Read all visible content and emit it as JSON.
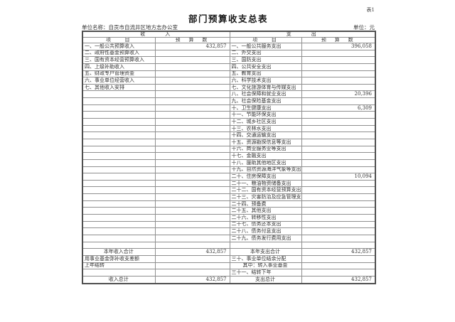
{
  "meta": {
    "table_tag": "表1",
    "title": "部门预算收支总表",
    "unit_name": "单位名称：自贡市自流井区地方志办公室",
    "unit": "单位：元"
  },
  "colors": {
    "background": "#ffffff",
    "border_inner": "#8f8f8f",
    "border_outer": "#4f4f4f",
    "text": "#2e2e2e"
  },
  "table": {
    "income_group_header": "收入",
    "expense_group_header": "支出",
    "item_header": "项目",
    "budget_header": "预算数",
    "rows": [
      {
        "li": "一、一般公共预算收入",
        "lv": "432,857",
        "ri": "一、一般公共服务支出",
        "rv": "396,058"
      },
      {
        "li": "二、政府性基金预算收入",
        "lv": "",
        "ri": "二、外交支出",
        "rv": ""
      },
      {
        "li": "三、国有资本经营预算收入",
        "lv": "",
        "ri": "三、国防支出",
        "rv": ""
      },
      {
        "li": "四、上级补助收入",
        "lv": "",
        "ri": "四、公共安全支出",
        "rv": ""
      },
      {
        "li": "五、财政专户管理资金",
        "lv": "",
        "ri": "五、教育支出",
        "rv": ""
      },
      {
        "li": "六、事业单位经营收入",
        "lv": "",
        "ri": "六、科学技术支出",
        "rv": ""
      },
      {
        "li": "七、其他收入安排",
        "lv": "",
        "ri": "七、文化旅游体育与传媒支出",
        "rv": ""
      },
      {
        "li": "",
        "lv": "",
        "ri": "八、社会保障和就业支出",
        "rv": "20,396"
      },
      {
        "li": "",
        "lv": "",
        "ri": "九、社会保险基金支出",
        "rv": ""
      },
      {
        "li": "",
        "lv": "",
        "ri": "十、卫生健康支出",
        "rv": "6,309"
      },
      {
        "li": "",
        "lv": "",
        "ri": "十一、节能环保支出",
        "rv": ""
      },
      {
        "li": "",
        "lv": "",
        "ri": "十二、城乡社区支出",
        "rv": ""
      },
      {
        "li": "",
        "lv": "",
        "ri": "十三、农林水支出",
        "rv": ""
      },
      {
        "li": "",
        "lv": "",
        "ri": "十四、交通运输支出",
        "rv": ""
      },
      {
        "li": "",
        "lv": "",
        "ri": "十五、资源勘探信息等支出",
        "rv": ""
      },
      {
        "li": "",
        "lv": "",
        "ri": "十六、商业服务业等支出",
        "rv": ""
      },
      {
        "li": "",
        "lv": "",
        "ri": "十七、金融支出",
        "rv": ""
      },
      {
        "li": "",
        "lv": "",
        "ri": "十八、援助其他地区支出",
        "rv": ""
      },
      {
        "li": "",
        "lv": "",
        "ri": "十九、自然资源海洋气象等支出",
        "rv": ""
      },
      {
        "li": "",
        "lv": "",
        "ri": "二十、住房保障支出",
        "rv": "10,094"
      },
      {
        "li": "",
        "lv": "",
        "ri": "二十一、粮油物资储备支出",
        "rv": ""
      },
      {
        "li": "",
        "lv": "",
        "ri": "二十二、国有资本经营预算支出",
        "rv": ""
      },
      {
        "li": "",
        "lv": "",
        "ri": "二十三、灾害防治及应急管理支出",
        "rv": ""
      },
      {
        "li": "",
        "lv": "",
        "ri": "二十四、预备费",
        "rv": ""
      },
      {
        "li": "",
        "lv": "",
        "ri": "二十五、其他支出",
        "rv": ""
      },
      {
        "li": "",
        "lv": "",
        "ri": "二十六、转移性支出",
        "rv": ""
      },
      {
        "li": "",
        "lv": "",
        "ri": "二十七、债务还本支出",
        "rv": ""
      },
      {
        "li": "",
        "lv": "",
        "ri": "二十八、债务付息支出",
        "rv": ""
      },
      {
        "li": "",
        "lv": "",
        "ri": "二十九、债务发行费用支出",
        "rv": ""
      },
      {
        "li": "",
        "lv": "",
        "ri": "",
        "rv": ""
      },
      {
        "li": "本年收入合计",
        "la": "c",
        "lv": "432,857",
        "ri": "本年支出合计",
        "ra": "c",
        "rv": "432,857"
      },
      {
        "li": "用事业基金弥补收支差额",
        "lv": "",
        "ri": "三十、事业单位结余分配",
        "rv": ""
      },
      {
        "li": "上年结转",
        "lv": "",
        "ri": "其中：转入事业基金",
        "ra": "c",
        "rv": ""
      },
      {
        "li": "",
        "lv": "",
        "ri": "三十一、结转下年",
        "rv": ""
      },
      {
        "li": "收入总计",
        "la": "c",
        "lv": "432,857",
        "ri": "支出总计",
        "ra": "c",
        "rv": "432,857"
      }
    ]
  }
}
